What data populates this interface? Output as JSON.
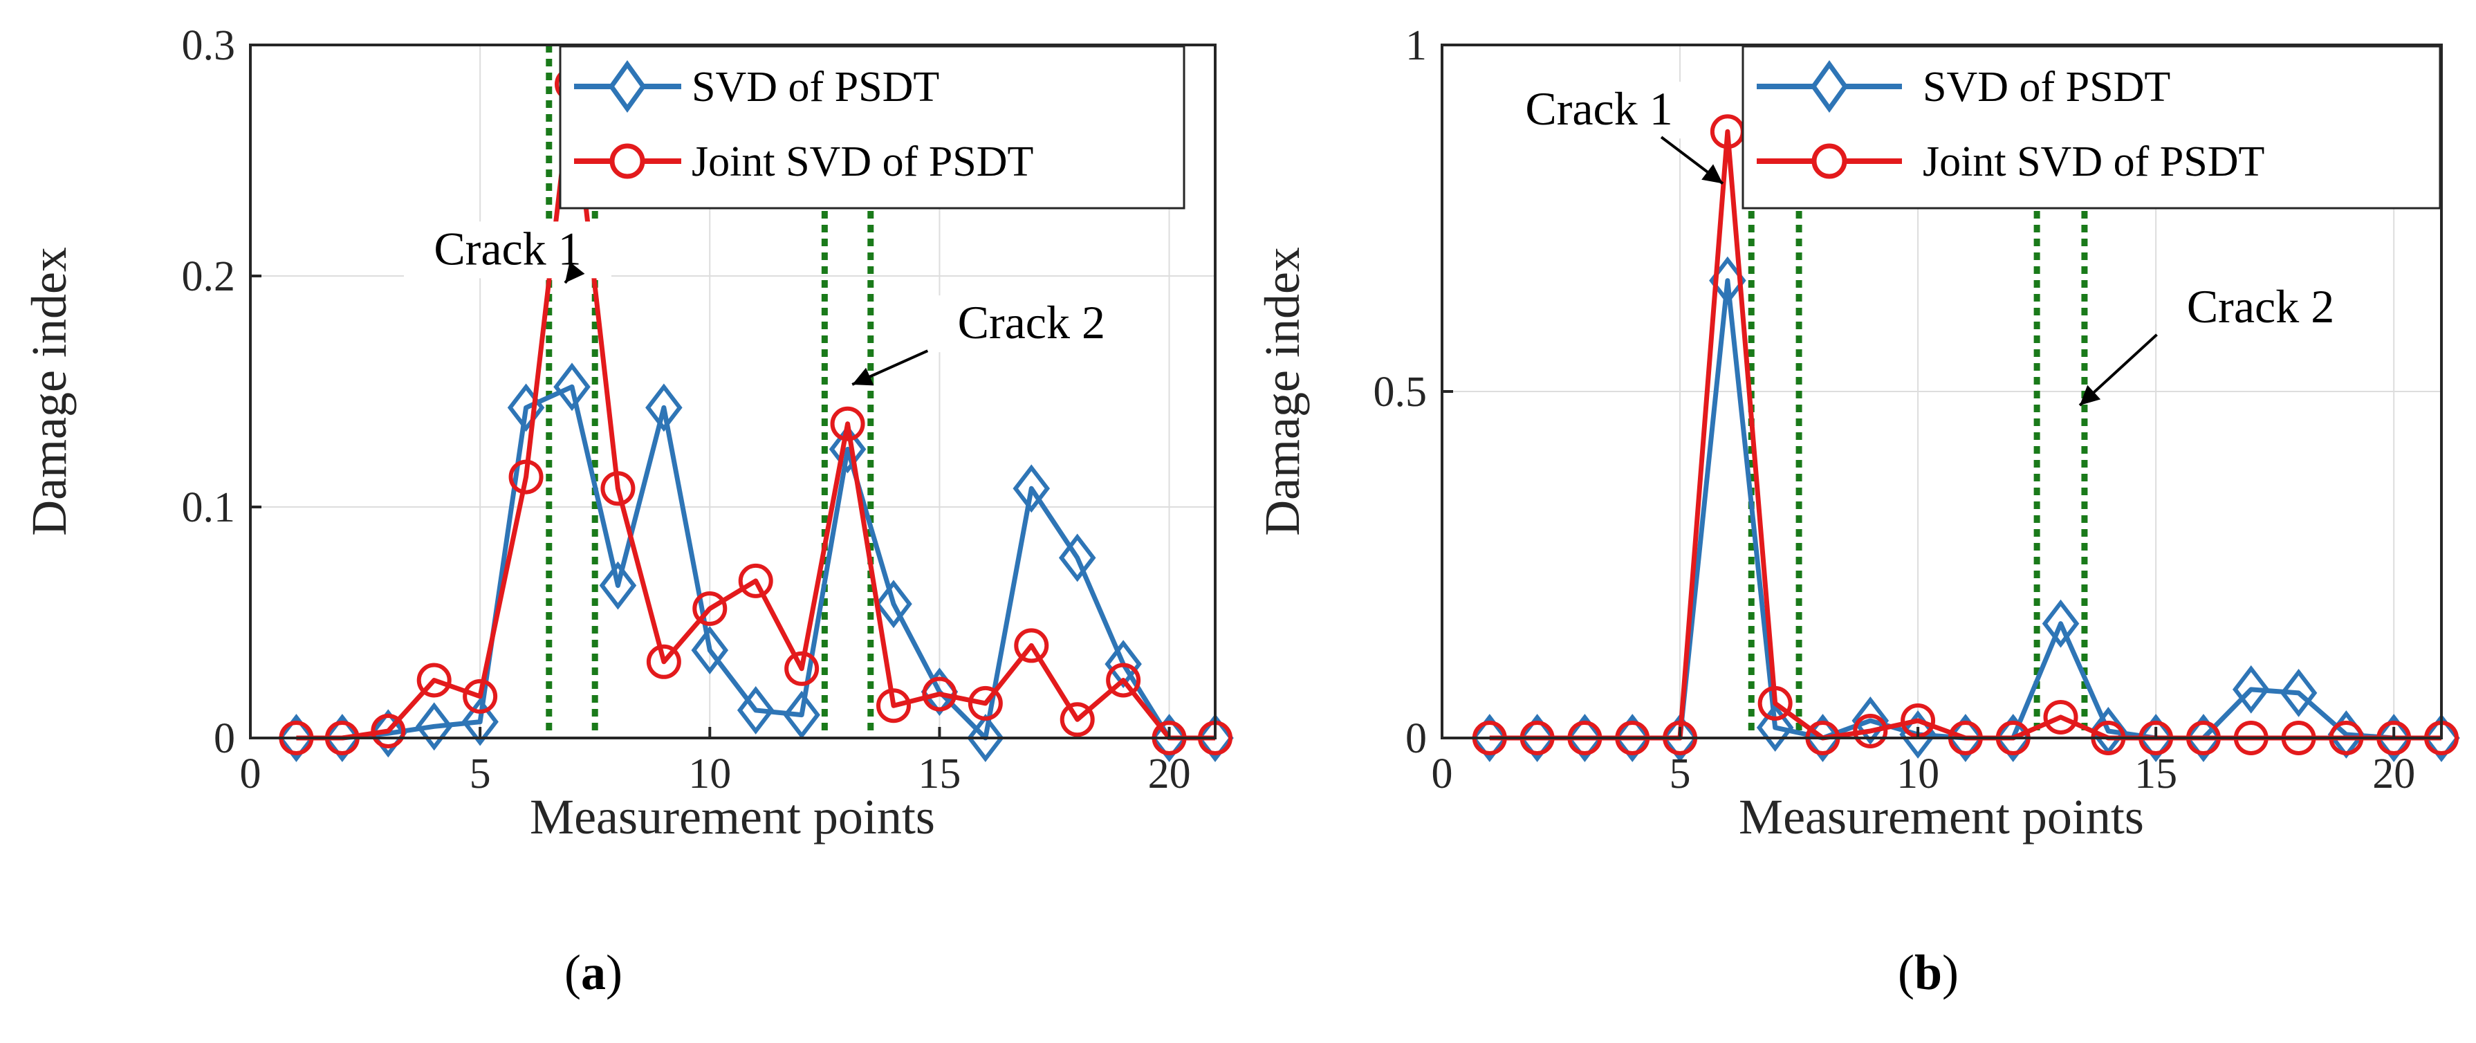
{
  "colors": {
    "svd": "#2e75b6",
    "joint": "#e31a1c",
    "crack_line": "#1a7a1a",
    "grid": "#dddddd",
    "axis": "#262626"
  },
  "chart_data": [
    {
      "id": "a",
      "type": "line",
      "subfigure_label": "a",
      "xlabel": "Measurement points",
      "ylabel": "Damage index",
      "xlim": [
        0,
        21
      ],
      "ylim": [
        0,
        0.3
      ],
      "xticks": [
        0,
        5,
        10,
        15,
        20
      ],
      "xtick_labels": [
        "0",
        "5",
        "10",
        "15",
        "20"
      ],
      "yticks": [
        0,
        0.1,
        0.2,
        0.3
      ],
      "ytick_labels": [
        "0",
        "0.1",
        "0.2",
        "0.3"
      ],
      "grid": true,
      "legend_position": "top-right",
      "x": [
        1,
        2,
        3,
        4,
        5,
        6,
        7,
        8,
        9,
        10,
        11,
        12,
        13,
        14,
        15,
        16,
        17,
        18,
        19,
        20,
        21
      ],
      "series": [
        {
          "name": "SVD of PSDT",
          "marker": "diamond",
          "color_key": "svd",
          "values": [
            0,
            0,
            0.002,
            0.005,
            0.007,
            0.143,
            0.152,
            0.066,
            0.143,
            0.038,
            0.012,
            0.01,
            0.125,
            0.058,
            0.02,
            0.0,
            0.108,
            0.078,
            0.032,
            0,
            0
          ]
        },
        {
          "name": "Joint SVD of PSDT",
          "marker": "circle",
          "color_key": "joint",
          "values": [
            0,
            0,
            0.003,
            0.025,
            0.018,
            0.113,
            0.283,
            0.108,
            0.033,
            0.056,
            0.068,
            0.03,
            0.136,
            0.014,
            0.019,
            0.015,
            0.04,
            0.008,
            0.025,
            0,
            0
          ]
        }
      ],
      "crack_lines": [
        6.5,
        7.5,
        12.5,
        13.5
      ],
      "annotations": [
        {
          "text": "Crack 1",
          "x": 5.6,
          "y": 0.205,
          "arrow_to": [
            6.85,
            0.197
          ]
        },
        {
          "text": "Crack 2",
          "x": 17.0,
          "y": 0.173,
          "arrow_to": [
            13.1,
            0.153
          ]
        }
      ]
    },
    {
      "id": "b",
      "type": "line",
      "subfigure_label": "b",
      "xlabel": "Measurement points",
      "ylabel": "Damage index",
      "xlim": [
        0,
        21
      ],
      "ylim": [
        0,
        1
      ],
      "xticks": [
        0,
        5,
        10,
        15,
        20
      ],
      "xtick_labels": [
        "0",
        "5",
        "10",
        "15",
        "20"
      ],
      "yticks": [
        0,
        0.5,
        1
      ],
      "ytick_labels": [
        "0",
        "0.5",
        "1"
      ],
      "grid": true,
      "legend_position": "top-right",
      "x": [
        1,
        2,
        3,
        4,
        5,
        6,
        7,
        8,
        9,
        10,
        11,
        12,
        13,
        14,
        15,
        16,
        17,
        18,
        19,
        20,
        21
      ],
      "series": [
        {
          "name": "SVD of PSDT",
          "marker": "diamond",
          "color_key": "svd",
          "values": [
            0,
            0,
            0,
            0,
            0,
            0.66,
            0.015,
            0,
            0.025,
            0.005,
            0,
            0,
            0.165,
            0.01,
            0,
            0,
            0.07,
            0.065,
            0.005,
            0,
            0
          ]
        },
        {
          "name": "Joint SVD of PSDT",
          "marker": "circle",
          "color_key": "joint",
          "values": [
            0,
            0,
            0,
            0,
            0,
            0.875,
            0.05,
            0,
            0.01,
            0.025,
            0,
            0,
            0.03,
            0,
            0,
            0,
            0,
            0,
            0,
            0,
            0
          ]
        }
      ],
      "crack_lines": [
        6.5,
        7.5,
        12.5,
        13.5
      ],
      "annotations": [
        {
          "text": "Crack 1",
          "x": 3.3,
          "y": 0.885,
          "arrow_to": [
            5.9,
            0.8
          ]
        },
        {
          "text": "Crack 2",
          "x": 17.2,
          "y": 0.6,
          "arrow_to": [
            13.4,
            0.48
          ]
        }
      ]
    }
  ]
}
